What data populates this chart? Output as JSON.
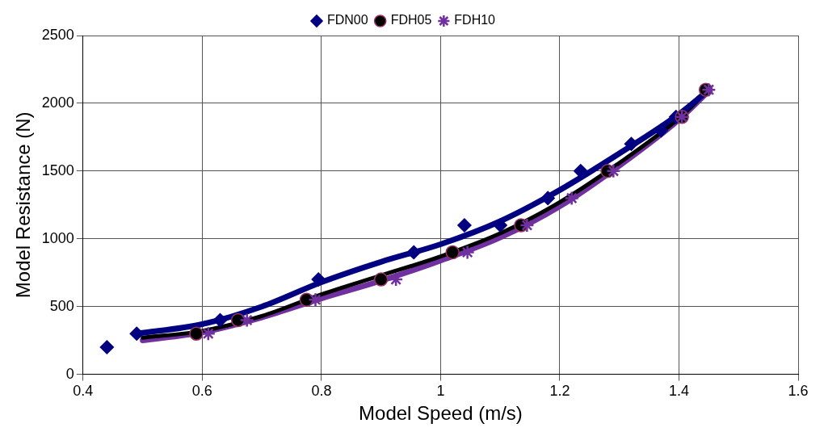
{
  "chart_data": {
    "type": "scatter",
    "xlabel": "Model Speed (m/s)",
    "ylabel": "Model Resistance (N)",
    "xlim": [
      0.4,
      1.6
    ],
    "xticks": [
      0.4,
      0.6,
      0.8,
      1,
      1.2,
      1.4,
      1.6
    ],
    "ylim": [
      0,
      2500
    ],
    "yticks": [
      0,
      500,
      1000,
      1500,
      2000,
      2500
    ],
    "grid": true,
    "legend": "top",
    "series": [
      {
        "name": "FDN00",
        "marker": "diamond",
        "color": "#000080",
        "x": [
          0.44,
          0.49,
          0.63,
          0.795,
          0.955,
          1.04,
          1.1,
          1.18,
          1.235,
          1.32,
          1.37,
          1.395
        ],
        "values": [
          200,
          300,
          400,
          700,
          900,
          1100,
          1100,
          1300,
          1500,
          1700,
          1800,
          1900
        ]
      },
      {
        "name": "FDH05",
        "marker": "circle",
        "color": "#000000",
        "x": [
          0.59,
          0.66,
          0.775,
          0.9,
          1.02,
          1.135,
          1.28,
          1.405,
          1.445
        ],
        "values": [
          300,
          400,
          550,
          700,
          900,
          1100,
          1500,
          1900,
          2100
        ]
      },
      {
        "name": "FDH10",
        "marker": "cross",
        "color": "#7030a0",
        "x": [
          0.61,
          0.675,
          0.79,
          0.925,
          1.045,
          1.145,
          1.22,
          1.29,
          1.405,
          1.45
        ],
        "values": [
          300,
          400,
          550,
          700,
          900,
          1100,
          1300,
          1500,
          1900,
          2100
        ]
      },
      {
        "type": "line",
        "marker": "none",
        "color": "#000080",
        "x": [
          0.49,
          0.6,
          0.7,
          0.8,
          0.9,
          1.0,
          1.1,
          1.2,
          1.3,
          1.4,
          1.445
        ],
        "values": [
          300,
          370,
          500,
          680,
          830,
          960,
          1130,
          1360,
          1630,
          1920,
          2080
        ]
      },
      {
        "type": "line",
        "marker": "none",
        "color": "#000000",
        "x": [
          0.5,
          0.6,
          0.7,
          0.8,
          0.9,
          1.0,
          1.1,
          1.2,
          1.3,
          1.4,
          1.445
        ],
        "values": [
          270,
          320,
          430,
          590,
          730,
          870,
          1040,
          1270,
          1560,
          1890,
          2080
        ]
      },
      {
        "type": "line",
        "marker": "none",
        "color": "#7030a0",
        "x": [
          0.5,
          0.6,
          0.7,
          0.8,
          0.9,
          1.0,
          1.1,
          1.2,
          1.3,
          1.4,
          1.45
        ],
        "values": [
          250,
          310,
          420,
          560,
          690,
          840,
          1010,
          1240,
          1540,
          1880,
          2090
        ]
      }
    ]
  }
}
